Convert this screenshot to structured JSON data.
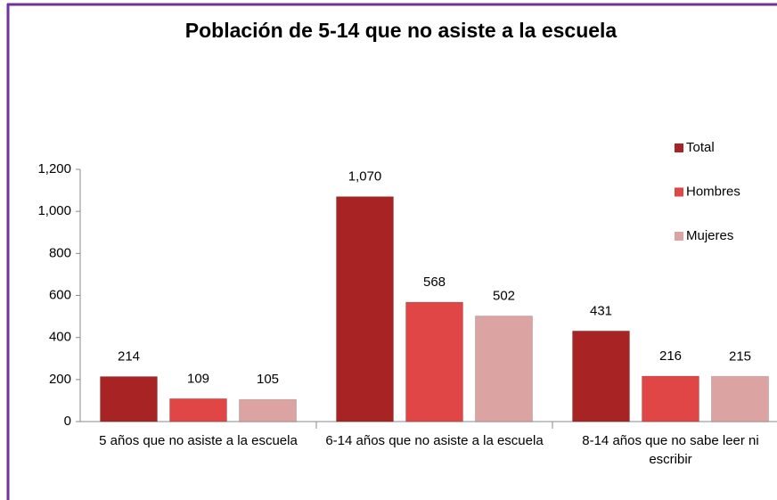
{
  "chart_data": {
    "type": "bar",
    "title": "Población de 5-14 que no asiste a la escuela",
    "categories": [
      "5 años que no asiste a la escuela",
      "6-14 años que no asiste a la escuela",
      "8-14 años que no sabe leer ni escribir"
    ],
    "series": [
      {
        "name": "Total",
        "color": "#a82424",
        "values": [
          214,
          1070,
          431
        ],
        "value_labels": [
          "214",
          "1,070",
          "431"
        ]
      },
      {
        "name": "Hombres",
        "color": "#e04646",
        "values": [
          109,
          568,
          216
        ],
        "value_labels": [
          "109",
          "568",
          "216"
        ]
      },
      {
        "name": "Mujeres",
        "color": "#dca3a3",
        "values": [
          105,
          502,
          215
        ],
        "value_labels": [
          "105",
          "502",
          "215"
        ]
      }
    ],
    "ylim": [
      0,
      1200
    ],
    "yticks": [
      0,
      200,
      400,
      600,
      800,
      {
        "value": 1000,
        "label": "1,000"
      },
      {
        "value": 1200,
        "label": "1,200"
      }
    ],
    "legend": "right"
  }
}
